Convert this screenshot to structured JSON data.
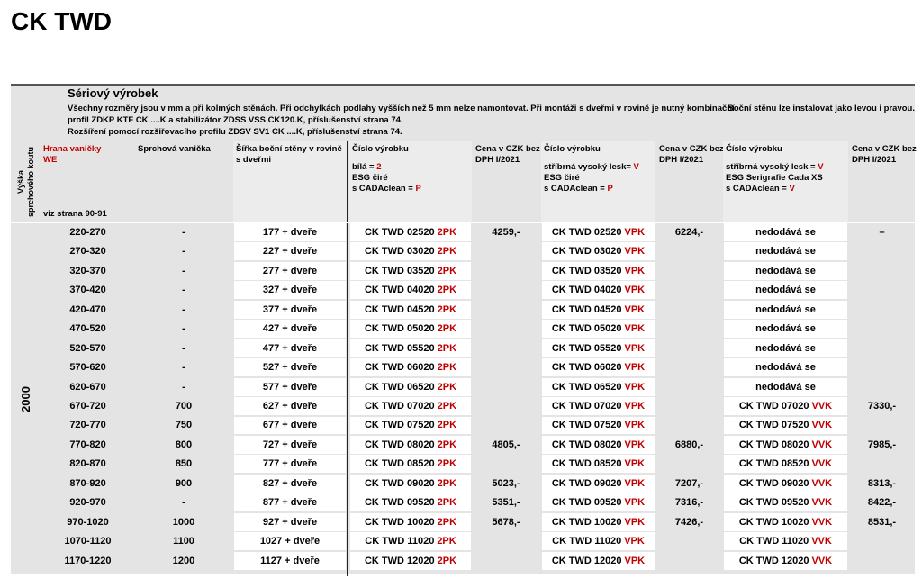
{
  "title": "CK TWD",
  "notes": {
    "heading": "Sériový výrobek",
    "lines": [
      "Všechny rozměry jsou v mm a při kolmých stěnách. Při odchylkách podlahy vyšších než 5 mm nelze namontovat. Při montáži s dveřmi v rovině je nutný kombinační",
      "profil ZDKP KTF CK ....K  a stabilizátor ZDSS VSS CK120.K, příslušenství strana 74.",
      "Rozšíření pomocí rozšiřovacího profilu ZDSV SV1 CK ....K, příslušenství strana 74."
    ],
    "side": "Boční stěnu lze instalovat jako levou i pravou."
  },
  "table": {
    "headers": [
      {
        "lines": [
          [
            {
              "text": "Výška"
            }
          ],
          [
            {
              "text": "sprchového koutu"
            }
          ]
        ]
      },
      {
        "lines": [
          [
            {
              "text": "Hrana vaničky",
              "highlight": true
            }
          ],
          [
            {
              "text": "WE",
              "highlight": true
            }
          ]
        ],
        "footer": "viz strana 90-91"
      },
      {
        "lines": [
          [
            {
              "text": "Sprchová vanička"
            }
          ]
        ]
      },
      {
        "lines": [
          [
            {
              "text": "Šířka boční stěny v rovině"
            }
          ],
          [
            {
              "text": "s dveřmi"
            }
          ]
        ]
      },
      {
        "lines": [
          [
            {
              "text": "Číslo výrobku"
            }
          ],
          [
            {
              "text": "bílá = "
            },
            {
              "text": "2",
              "highlight": true
            }
          ],
          [
            {
              "text": "ESG čiré"
            }
          ],
          [
            {
              "text": "s CADAclean = "
            },
            {
              "text": "P",
              "highlight": true
            }
          ]
        ]
      },
      {
        "lines": [
          [
            {
              "text": "Cena v CZK bez"
            }
          ],
          [
            {
              "text": "DPH I/2021"
            }
          ]
        ]
      },
      {
        "lines": [
          [
            {
              "text": "Číslo výrobku"
            }
          ],
          [
            {
              "text": "stříbrná vysoký lesk= "
            },
            {
              "text": "V",
              "highlight": true
            }
          ],
          [
            {
              "text": "ESG čiré"
            }
          ],
          [
            {
              "text": "s CADAclean = "
            },
            {
              "text": "P",
              "highlight": true
            }
          ]
        ]
      },
      {
        "lines": [
          [
            {
              "text": "Cena v CZK bez"
            }
          ],
          [
            {
              "text": "DPH I/2021"
            }
          ]
        ]
      },
      {
        "lines": [
          [
            {
              "text": "Číslo výrobku"
            }
          ],
          [
            {
              "text": "stříbrná vysoký lesk = "
            },
            {
              "text": "V",
              "highlight": true
            }
          ],
          [
            {
              "text": "ESG Serigrafie Cada XS"
            }
          ],
          [
            {
              "text": "s CADAclean = "
            },
            {
              "text": "V",
              "highlight": true
            }
          ]
        ]
      },
      {
        "lines": [
          [
            {
              "text": "Cena v CZK bez"
            }
          ],
          [
            {
              "text": "DPH I/2021"
            }
          ]
        ]
      }
    ],
    "height": "2000",
    "suffixes": {
      "white": "2PK",
      "silver": "VPK",
      "vvk": "VVK"
    },
    "not_available": "nedodává se",
    "rows": [
      {
        "range": "220-270",
        "tray": "-",
        "width": "177 + dveře",
        "code": "CK TWD 02520",
        "price_white": "4259,-",
        "price_silver": "6224,-",
        "price_vvk": "–",
        "vvk": false
      },
      {
        "range": "270-320",
        "tray": "-",
        "width": "227 + dveře",
        "code": "CK TWD 03020",
        "vvk": false
      },
      {
        "range": "320-370",
        "tray": "-",
        "width": "277 + dveře",
        "code": "CK TWD 03520",
        "vvk": false
      },
      {
        "range": "370-420",
        "tray": "-",
        "width": "327 + dveře",
        "code": "CK TWD 04020",
        "vvk": false
      },
      {
        "range": "420-470",
        "tray": "-",
        "width": "377 + dveře",
        "code": "CK TWD 04520",
        "vvk": false
      },
      {
        "range": "470-520",
        "tray": "-",
        "width": "427 + dveře",
        "code": "CK TWD 05020",
        "vvk": false
      },
      {
        "range": "520-570",
        "tray": "-",
        "width": "477 + dveře",
        "code": "CK TWD 05520",
        "vvk": false
      },
      {
        "range": "570-620",
        "tray": "-",
        "width": "527 + dveře",
        "code": "CK TWD 06020",
        "vvk": false
      },
      {
        "range": "620-670",
        "tray": "-",
        "width": "577 + dveře",
        "code": "CK TWD 06520",
        "vvk": false
      },
      {
        "range": "670-720",
        "tray": "700",
        "width": "627 + dveře",
        "code": "CK TWD 07020",
        "price_vvk": "7330,-",
        "vvk": true
      },
      {
        "range": "720-770",
        "tray": "750",
        "width": "677 + dveře",
        "code": "CK TWD 07520",
        "vvk": true
      },
      {
        "range": "770-820",
        "tray": "800",
        "width": "727 + dveře",
        "code": "CK TWD 08020",
        "price_white": "4805,-",
        "price_silver": "6880,-",
        "price_vvk": "7985,-",
        "vvk": true
      },
      {
        "range": "820-870",
        "tray": "850",
        "width": "777 + dveře",
        "code": "CK TWD 08520",
        "vvk": true
      },
      {
        "range": "870-920",
        "tray": "900",
        "width": "827 + dveře",
        "code": "CK TWD 09020",
        "price_white": "5023,-",
        "price_silver": "7207,-",
        "price_vvk": "8313,-",
        "vvk": true
      },
      {
        "range": "920-970",
        "tray": "-",
        "width": "877 + dveře",
        "code": "CK TWD 09520",
        "price_white": "5351,-",
        "price_silver": "7316,-",
        "price_vvk": "8422,-",
        "vvk": true
      },
      {
        "range": "970-1020",
        "tray": "1000",
        "width": "927 + dveře",
        "code": "CK TWD 10020",
        "price_white": "5678,-",
        "price_silver": "7426,-",
        "price_vvk": "8531,-",
        "vvk": true
      },
      {
        "range": "1070-1120",
        "tray": "1100",
        "width": "1027 + dveře",
        "code": "CK TWD 11020",
        "vvk": true
      },
      {
        "range": "1170-1220",
        "tray": "1200",
        "width": "1127 + dveře",
        "code": "CK TWD 12020",
        "vvk": true
      }
    ]
  }
}
